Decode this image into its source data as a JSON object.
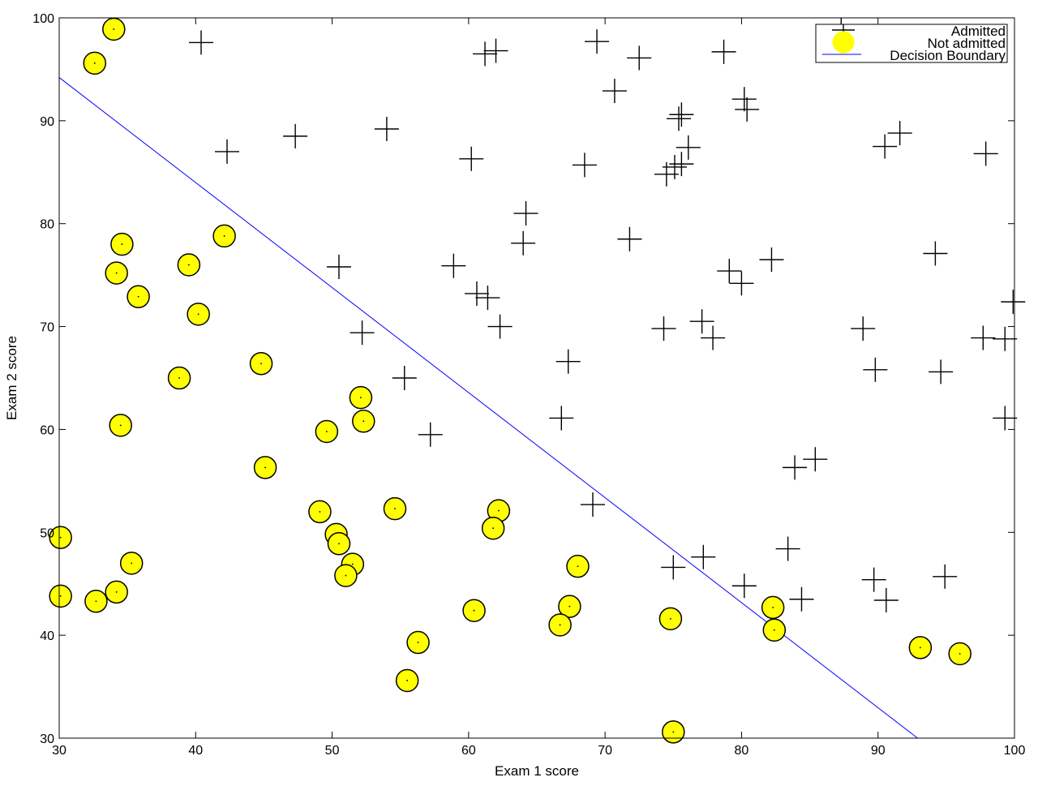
{
  "chart_data": {
    "type": "scatter",
    "xlabel": "Exam 1 score",
    "ylabel": "Exam 2 score",
    "xlim": [
      30,
      100
    ],
    "ylim": [
      30,
      100
    ],
    "xticks": [
      30,
      40,
      50,
      60,
      70,
      80,
      90,
      100
    ],
    "yticks": [
      30,
      40,
      50,
      60,
      70,
      80,
      90,
      100
    ],
    "legend_position": "top-right",
    "colors": {
      "admitted": "#000000",
      "not_admitted_fill": "#ffff00",
      "not_admitted_edge": "#000000",
      "boundary": "#0000ff"
    },
    "series": [
      {
        "name": "Admitted",
        "marker": "plus",
        "points": [
          [
            40.4,
            97.6
          ],
          [
            61.2,
            96.5
          ],
          [
            62.0,
            96.8
          ],
          [
            69.4,
            97.7
          ],
          [
            72.5,
            96.1
          ],
          [
            78.7,
            96.7
          ],
          [
            87.3,
            98.8
          ],
          [
            70.7,
            92.9
          ],
          [
            75.4,
            90.2
          ],
          [
            75.6,
            90.6
          ],
          [
            80.2,
            92.1
          ],
          [
            80.4,
            91.1
          ],
          [
            54.0,
            89.2
          ],
          [
            47.3,
            88.5
          ],
          [
            42.3,
            87.0
          ],
          [
            91.6,
            88.8
          ],
          [
            90.5,
            87.5
          ],
          [
            97.9,
            86.8
          ],
          [
            60.2,
            86.3
          ],
          [
            68.5,
            85.7
          ],
          [
            74.5,
            84.8
          ],
          [
            75.1,
            85.5
          ],
          [
            75.6,
            85.8
          ],
          [
            76.1,
            87.4
          ],
          [
            64.2,
            81.0
          ],
          [
            64.0,
            78.1
          ],
          [
            71.8,
            78.5
          ],
          [
            50.5,
            75.8
          ],
          [
            58.9,
            75.9
          ],
          [
            79.1,
            75.4
          ],
          [
            80.0,
            74.2
          ],
          [
            82.2,
            76.5
          ],
          [
            94.2,
            77.1
          ],
          [
            60.6,
            73.2
          ],
          [
            61.4,
            72.8
          ],
          [
            99.9,
            72.4
          ],
          [
            62.3,
            70.0
          ],
          [
            52.2,
            69.4
          ],
          [
            74.3,
            69.8
          ],
          [
            77.1,
            70.5
          ],
          [
            77.9,
            68.9
          ],
          [
            88.9,
            69.8
          ],
          [
            97.7,
            68.9
          ],
          [
            99.3,
            68.8
          ],
          [
            67.3,
            66.6
          ],
          [
            55.3,
            65.0
          ],
          [
            89.8,
            65.8
          ],
          [
            94.6,
            65.6
          ],
          [
            66.8,
            61.1
          ],
          [
            99.3,
            61.1
          ],
          [
            57.2,
            59.5
          ],
          [
            83.9,
            56.3
          ],
          [
            85.4,
            57.1
          ],
          [
            69.1,
            52.7
          ],
          [
            83.4,
            48.4
          ],
          [
            77.2,
            47.6
          ],
          [
            75.0,
            46.6
          ],
          [
            80.2,
            44.8
          ],
          [
            89.7,
            45.4
          ],
          [
            94.9,
            45.7
          ],
          [
            84.4,
            43.5
          ],
          [
            90.6,
            43.4
          ]
        ]
      },
      {
        "name": "Not admitted",
        "marker": "circle",
        "points": [
          [
            34.0,
            98.9
          ],
          [
            32.6,
            95.6
          ],
          [
            42.1,
            78.8
          ],
          [
            34.6,
            78.0
          ],
          [
            39.5,
            76.0
          ],
          [
            34.2,
            75.2
          ],
          [
            35.8,
            72.9
          ],
          [
            40.2,
            71.2
          ],
          [
            44.8,
            66.4
          ],
          [
            38.8,
            65.0
          ],
          [
            52.1,
            63.1
          ],
          [
            52.3,
            60.8
          ],
          [
            34.5,
            60.4
          ],
          [
            49.6,
            59.8
          ],
          [
            45.1,
            56.3
          ],
          [
            54.6,
            52.3
          ],
          [
            62.2,
            52.1
          ],
          [
            49.1,
            52.0
          ],
          [
            61.8,
            50.4
          ],
          [
            30.1,
            49.5
          ],
          [
            50.3,
            49.8
          ],
          [
            50.5,
            48.9
          ],
          [
            35.3,
            47.0
          ],
          [
            51.5,
            46.9
          ],
          [
            68.0,
            46.7
          ],
          [
            51.0,
            45.8
          ],
          [
            30.1,
            43.8
          ],
          [
            32.7,
            43.3
          ],
          [
            34.2,
            44.2
          ],
          [
            67.4,
            42.8
          ],
          [
            82.3,
            42.7
          ],
          [
            60.4,
            42.4
          ],
          [
            74.8,
            41.6
          ],
          [
            66.7,
            41.0
          ],
          [
            82.4,
            40.5
          ],
          [
            56.3,
            39.3
          ],
          [
            93.1,
            38.8
          ],
          [
            96.0,
            38.2
          ],
          [
            55.5,
            35.6
          ],
          [
            75.0,
            30.6
          ]
        ]
      },
      {
        "name": "Decision Boundary",
        "marker": "line",
        "points": [
          [
            30,
            94.2
          ],
          [
            92.9,
            30
          ]
        ]
      }
    ]
  }
}
